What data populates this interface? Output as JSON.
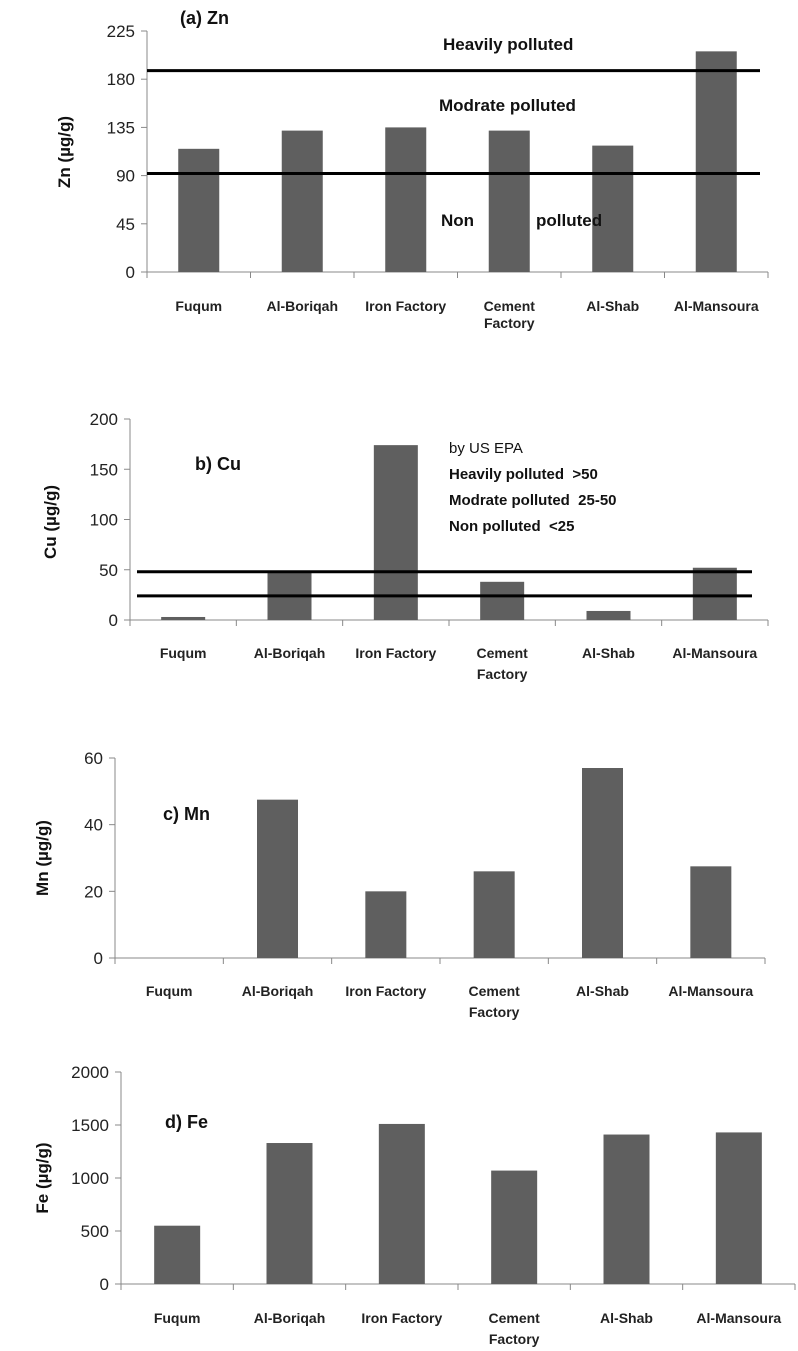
{
  "chart_data": [
    {
      "type": "bar",
      "title": "(a) Zn",
      "ylabel": "Zn (µg/g)",
      "categories": [
        "Fuqum",
        "Al-Boriqah",
        "Iron Factory",
        "Cement Factory",
        "Al-Shab",
        "Al-Mansoura"
      ],
      "values": [
        115,
        132,
        135,
        132,
        118,
        206
      ],
      "ylim": [
        0,
        225
      ],
      "yticks": [
        0,
        45,
        90,
        135,
        180,
        225
      ],
      "bar_color": "#5f5f5f",
      "reference_lines": [
        {
          "value": 188
        },
        {
          "value": 92
        }
      ],
      "annotations": [
        "Heavily polluted",
        "Modrate polluted",
        "Non",
        "polluted"
      ]
    },
    {
      "type": "bar",
      "title": "b) Cu",
      "ylabel": "Cu (µg/g)",
      "categories": [
        "Fuqum",
        "Al-Boriqah",
        "Iron Factory",
        "Cement Factory",
        "Al-Shab",
        "Al-Mansoura"
      ],
      "values": [
        3,
        48,
        174,
        38,
        9,
        52
      ],
      "ylim": [
        0,
        200
      ],
      "yticks": [
        0,
        50,
        100,
        150,
        200
      ],
      "bar_color": "#5f5f5f",
      "reference_lines": [
        {
          "value": 48
        },
        {
          "value": 24
        }
      ],
      "annotations": [
        "by US EPA",
        "Heavily polluted  >50",
        "Modrate polluted  25-50",
        "Non polluted  <25"
      ]
    },
    {
      "type": "bar",
      "title": "c) Mn",
      "ylabel": "Mn (µg/g)",
      "categories": [
        "Fuqum",
        "Al-Boriqah",
        "Iron Factory",
        "Cement Factory",
        "Al-Shab",
        "Al-Mansoura"
      ],
      "values": [
        0,
        47.5,
        20,
        26,
        57,
        27.5
      ],
      "ylim": [
        0,
        60
      ],
      "yticks": [
        0,
        20,
        40,
        60
      ],
      "bar_color": "#5f5f5f",
      "reference_lines": [],
      "annotations": []
    },
    {
      "type": "bar",
      "title": "d) Fe",
      "ylabel": "Fe (µg/g)",
      "categories": [
        "Fuqum",
        "Al-Boriqah",
        "Iron Factory",
        "Cement Factory",
        "Al-Shab",
        "Al-Mansoura"
      ],
      "values": [
        550,
        1330,
        1510,
        1070,
        1410,
        1430
      ],
      "ylim": [
        0,
        2000
      ],
      "yticks": [
        0,
        500,
        1000,
        1500,
        2000
      ],
      "bar_color": "#5f5f5f",
      "reference_lines": [],
      "annotations": []
    }
  ]
}
